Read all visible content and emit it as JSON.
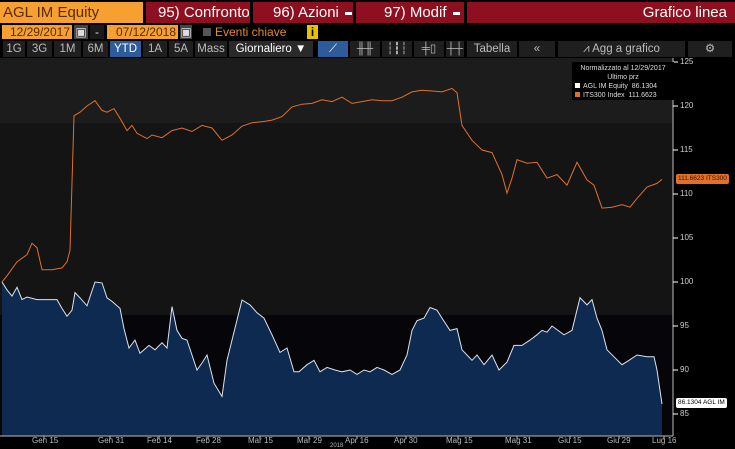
{
  "header": {
    "ticker": "AGL IM Equity",
    "compare": "95) Confronto",
    "actions": "96) Azioni",
    "modify": "97) Modif",
    "chart_type": "Grafico linea"
  },
  "dates": {
    "start": "12/29/2017",
    "separator": "-",
    "end": "07/12/2018",
    "events_label": "Eventi chiave",
    "info": "i"
  },
  "toolbar": {
    "ranges": [
      "1G",
      "3G",
      "1M",
      "6M",
      "YTD",
      "1A",
      "5A",
      "Mass"
    ],
    "selected_range": "YTD",
    "frequency": "Giornaliero ▼",
    "table": "Tabella",
    "collapse": "«",
    "add_to_chart": "Agg a grafico",
    "settings": "⚙"
  },
  "colors": {
    "orange": "#e0702a",
    "white": "#dde3ee",
    "area": "#0e2a50"
  },
  "chart_data": {
    "type": "line",
    "title": "Normalizzato al 12/29/2017",
    "subtitle": "Ultimo prz",
    "legend_position": "top-right",
    "ylim": [
      84,
      126
    ],
    "xlim": [
      0,
      132
    ],
    "yticks": [
      125,
      120,
      115,
      110,
      105,
      100,
      95,
      90,
      85
    ],
    "xticks": [
      {
        "x": 8.4,
        "label": "Gen 15"
      },
      {
        "x": 21.6,
        "label": "Gen 31"
      },
      {
        "x": 31.4,
        "label": "Feb 14"
      },
      {
        "x": 41.2,
        "label": "Feb 28"
      },
      {
        "x": 51.6,
        "label": "Mar 15"
      },
      {
        "x": 61.4,
        "label": "Mar 29"
      },
      {
        "x": 71,
        "label": "Apr 16"
      },
      {
        "x": 80.8,
        "label": "Apr 30"
      },
      {
        "x": 91.2,
        "label": "Mag 15"
      },
      {
        "x": 103,
        "label": "Mag 31"
      },
      {
        "x": 113.6,
        "label": "Giu 15"
      },
      {
        "x": 123.4,
        "label": "Giu 29"
      },
      {
        "x": 132.4,
        "label": "Lug 16"
      }
    ],
    "year_label": "2018",
    "series": [
      {
        "name": "ITS300 Index",
        "legend": "ITS300 Index",
        "last": "111.6623",
        "flag": "111.6623 ITS300",
        "x": [
          0,
          1,
          3,
          5,
          6,
          7,
          8,
          10,
          12,
          13,
          13.6,
          14.4,
          15.6,
          17,
          18.6,
          20,
          21,
          22.4,
          23.6,
          25,
          26,
          27,
          29,
          30,
          32,
          34,
          36,
          38,
          40,
          42,
          44,
          46,
          48,
          50,
          52,
          54,
          56,
          58,
          60,
          62,
          64,
          66,
          68,
          70,
          72,
          74,
          76,
          78,
          80,
          82,
          84,
          86,
          88,
          90,
          91,
          92,
          94,
          96,
          98,
          100,
          101,
          102,
          103,
          105,
          107,
          109,
          111,
          113,
          115,
          117,
          118.4,
          120,
          122,
          124,
          125.6,
          127,
          129,
          131,
          132
        ],
        "values": [
          100,
          100.7,
          102.3,
          103.1,
          104.4,
          103.9,
          101.4,
          101.4,
          101.6,
          102.3,
          103.6,
          118.9,
          119.3,
          120.0,
          120.6,
          119.5,
          119.3,
          119.7,
          118.6,
          117.2,
          117.8,
          116.9,
          116.3,
          116.7,
          116.4,
          117.2,
          117.5,
          117.1,
          117.8,
          117.5,
          116.1,
          116.7,
          117.7,
          118.1,
          118.2,
          118.4,
          118.8,
          119.9,
          120.2,
          120.3,
          120.7,
          120.5,
          121.0,
          120.3,
          120.5,
          120.7,
          120.6,
          120.6,
          121.0,
          121.6,
          121.8,
          121.7,
          121.6,
          122.0,
          121.5,
          117.8,
          116.1,
          115.0,
          114.7,
          112.2,
          110.1,
          111.8,
          113.9,
          113.5,
          113.6,
          111.8,
          112.2,
          111.0,
          113.6,
          111.6,
          111.0,
          108.4,
          108.5,
          108.8,
          108.5,
          109.5,
          110.8,
          111.2,
          111.66
        ]
      },
      {
        "name": "AGL IM Equity",
        "legend": "AGL IM Equity",
        "last": "86.1304",
        "flag": "86.1304 AGL IM",
        "x": [
          0,
          1,
          2,
          3,
          4,
          5,
          7,
          9,
          11,
          12,
          13,
          14,
          14.6,
          15.6,
          17,
          18.6,
          20,
          21,
          22,
          23.6,
          24.4,
          25.4,
          26.6,
          27.6,
          29.4,
          30.6,
          32,
          33,
          34,
          35,
          36,
          37,
          39,
          40,
          41,
          42.4,
          44,
          45,
          46,
          48,
          49.6,
          51,
          52.4,
          54,
          55.6,
          57,
          58.4,
          59.4,
          61,
          62.4,
          63.6,
          65,
          66.6,
          68,
          69.6,
          71,
          72.4,
          73.6,
          75,
          76.4,
          78,
          79.6,
          81,
          82,
          83,
          84.4,
          85.6,
          87,
          88,
          89.6,
          91,
          92,
          93,
          94,
          95,
          96.4,
          98,
          99.4,
          101,
          102.4,
          104,
          105.6,
          107,
          108,
          109,
          110,
          111.2,
          112.4,
          114,
          115.6,
          117,
          118,
          119,
          120,
          121,
          122.4,
          124,
          125.4,
          127,
          129,
          130.4,
          131,
          132
        ],
        "values": [
          100,
          99.1,
          98.4,
          99.4,
          98.0,
          98.3,
          98.0,
          98.0,
          98.0,
          97.0,
          96.1,
          96.8,
          98.8,
          98.2,
          97.3,
          100.0,
          99.9,
          98.2,
          97.8,
          97.0,
          94.7,
          92.5,
          93.4,
          91.9,
          92.8,
          92.3,
          93.1,
          92.5,
          97.2,
          94.5,
          93.6,
          93.4,
          90.0,
          90.8,
          91.7,
          88.5,
          87.0,
          91.1,
          93.4,
          97.95,
          97.4,
          96.5,
          95.9,
          94.0,
          92.0,
          92.5,
          89.8,
          89.8,
          90.6,
          91.1,
          89.8,
          90.3,
          90.0,
          89.8,
          90.0,
          89.5,
          90.0,
          89.8,
          90.3,
          90.0,
          89.5,
          90.0,
          91.7,
          94.5,
          95.6,
          95.9,
          97.1,
          96.8,
          95.9,
          94.5,
          94.7,
          92.3,
          91.7,
          91.1,
          91.7,
          90.6,
          91.7,
          90.0,
          90.9,
          92.8,
          92.8,
          93.4,
          94.0,
          94.5,
          94.3,
          95.0,
          94.5,
          94.0,
          94.5,
          98.2,
          97.4,
          98.0,
          95.9,
          94.5,
          92.3,
          91.5,
          90.6,
          91.1,
          91.7,
          91.5,
          91.5,
          90.0,
          86.13
        ]
      }
    ]
  }
}
